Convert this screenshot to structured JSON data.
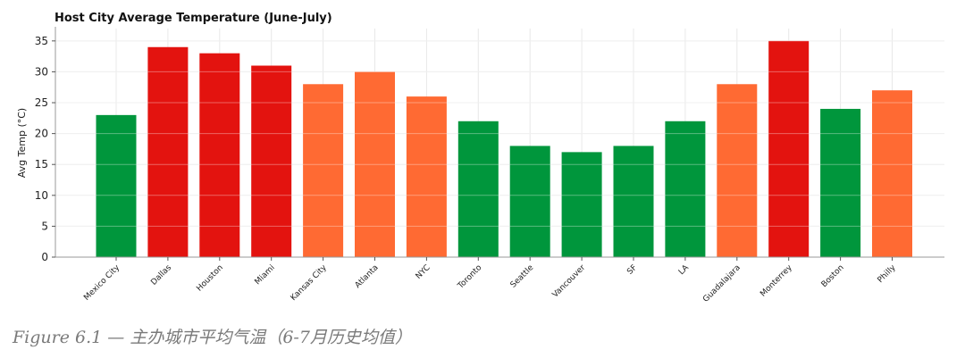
{
  "chart_data": {
    "type": "bar",
    "title": "Host City Average Temperature (June-July)",
    "xlabel": "",
    "ylabel": "Avg Temp (°C)",
    "ylim": [
      0,
      37
    ],
    "yticks": [
      0,
      5,
      10,
      15,
      20,
      25,
      30,
      35
    ],
    "grid": true,
    "categories": [
      "Mexico City",
      "Dallas",
      "Houston",
      "Miami",
      "Kansas City",
      "Atlanta",
      "NYC",
      "Toronto",
      "Seattle",
      "Vancouver",
      "SF",
      "LA",
      "Guadalajara",
      "Monterrey",
      "Boston",
      "Philly"
    ],
    "values": [
      23,
      34,
      33,
      31,
      28,
      30,
      26,
      22,
      18,
      17,
      18,
      22,
      28,
      35,
      24,
      27
    ],
    "colors": [
      "#00963c",
      "#e3130f",
      "#e3130f",
      "#e3130f",
      "#ff6a33",
      "#ff6a33",
      "#ff6a33",
      "#00963c",
      "#00963c",
      "#00963c",
      "#00963c",
      "#00963c",
      "#ff6a33",
      "#e3130f",
      "#00963c",
      "#ff6a33"
    ]
  },
  "caption": "Figure 6.1 — 主办城市平均气温（6-7月历史均值）"
}
